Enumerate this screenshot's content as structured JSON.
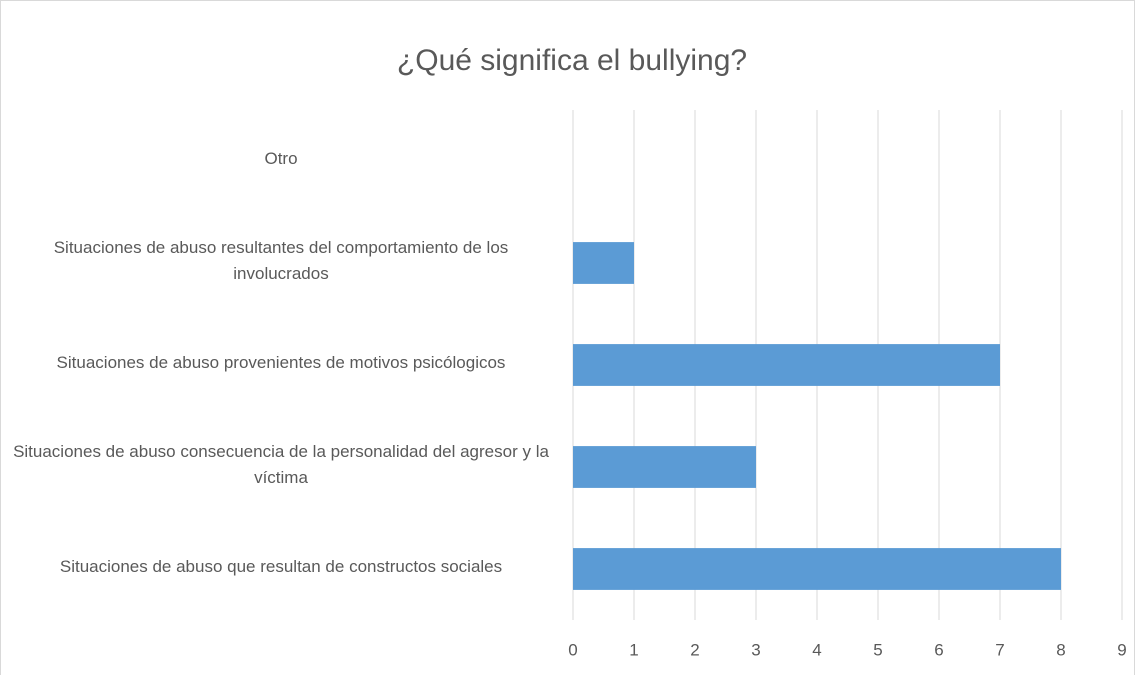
{
  "chart_data": {
    "type": "bar",
    "orientation": "horizontal",
    "title": "¿Qué significa el bullying?",
    "categories": [
      "Otro",
      "Situaciones de abuso resultantes del comportamiento de los involucrados",
      "Situaciones de abuso provenientes de motivos psicólogicos",
      "Situaciones de abuso consecuencia de la personalidad del agresor y la víctima",
      "Situaciones de abuso que resultan de constructos sociales"
    ],
    "values": [
      0,
      1,
      7,
      3,
      8
    ],
    "color": "#5b9bd5",
    "xlim": [
      0,
      9
    ],
    "xticks": [
      0,
      1,
      2,
      3,
      4,
      5,
      6,
      7,
      8,
      9
    ],
    "grid": true
  }
}
